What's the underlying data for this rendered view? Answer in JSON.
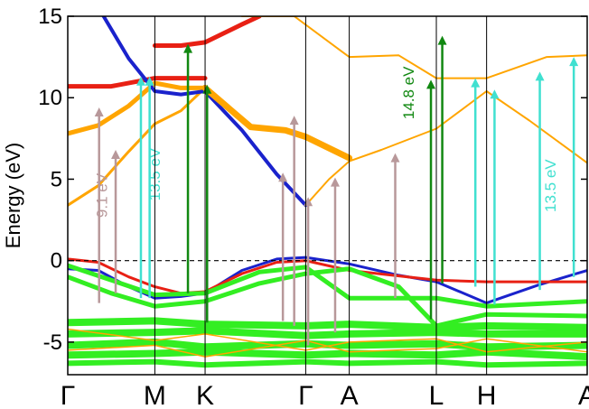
{
  "chart_data": {
    "type": "line",
    "ylabel": "Energy (eV)",
    "ylim": [
      -7,
      15
    ],
    "yticks": [
      -5,
      0,
      5,
      10,
      15
    ],
    "kpoints": [
      {
        "label": "Γ",
        "x": 0
      },
      {
        "label": "M",
        "x": 1.0
      },
      {
        "label": "K",
        "x": 1.577
      },
      {
        "label": "Γ",
        "x": 2.732
      },
      {
        "label": "A",
        "x": 3.232
      },
      {
        "label": "L",
        "x": 4.232
      },
      {
        "label": "H",
        "x": 4.809
      },
      {
        "label": "A",
        "x": 5.964
      }
    ],
    "fermi_level": 0,
    "colors": {
      "blue": "#1a22cc",
      "red": "#e82014",
      "green": "#33ee22",
      "orange": "#ffa500",
      "purple": "#5a2a8a",
      "rosy": "#b8989a",
      "cyan": "#40e0d0",
      "darkgreen": "#118811"
    },
    "series": [
      {
        "color": "orange",
        "width": 3,
        "points": [
          [
            0,
            3.4
          ],
          [
            0.35,
            4.6
          ],
          [
            0.7,
            6.7
          ],
          [
            1.0,
            8.4
          ],
          [
            1.3,
            9.2
          ],
          [
            1.577,
            10.6
          ]
        ]
      },
      {
        "color": "orange",
        "width": 5,
        "points": [
          [
            0,
            7.8
          ],
          [
            0.35,
            8.3
          ],
          [
            0.7,
            9.5
          ],
          [
            1.0,
            10.9
          ],
          [
            1.3,
            10.6
          ],
          [
            1.577,
            10.6
          ]
        ]
      },
      {
        "color": "red",
        "width": 5,
        "points": [
          [
            0,
            10.7
          ],
          [
            0.5,
            10.7
          ],
          [
            1.0,
            11.2
          ],
          [
            1.577,
            11.2
          ]
        ]
      },
      {
        "color": "red",
        "width": 5,
        "points": [
          [
            1.0,
            13.2
          ],
          [
            1.3,
            13.2
          ],
          [
            1.577,
            13.4
          ],
          [
            2.0,
            14.5
          ],
          [
            2.2,
            15
          ]
        ]
      },
      {
        "color": "blue",
        "width": 4,
        "points": [
          [
            0.4,
            15.1
          ],
          [
            0.7,
            12.4
          ],
          [
            1.0,
            10.4
          ],
          [
            1.3,
            10.2
          ],
          [
            1.577,
            10.4
          ],
          [
            2.0,
            8.0
          ],
          [
            2.4,
            5.3
          ],
          [
            2.732,
            3.4
          ]
        ]
      },
      {
        "color": "orange",
        "width": 7,
        "points": [
          [
            1.577,
            10.6
          ],
          [
            2.1,
            8.2
          ],
          [
            2.5,
            8.0
          ],
          [
            2.732,
            7.6
          ],
          [
            3.232,
            6.3
          ]
        ]
      },
      {
        "color": "orange",
        "width": 2,
        "points": [
          [
            2.732,
            3.4
          ],
          [
            3.0,
            5.0
          ],
          [
            3.232,
            6.1
          ],
          [
            3.6,
            6.8
          ],
          [
            4.232,
            8.1
          ],
          [
            4.809,
            10.4
          ],
          [
            5.3,
            8.6
          ],
          [
            5.964,
            6.0
          ]
        ]
      },
      {
        "color": "orange",
        "width": 2,
        "points": [
          [
            2.0,
            15
          ],
          [
            2.6,
            15
          ],
          [
            3.232,
            12.5
          ],
          [
            3.8,
            12.6
          ],
          [
            4.232,
            11.2
          ],
          [
            4.809,
            11.2
          ],
          [
            5.5,
            12.5
          ],
          [
            5.964,
            12.6
          ]
        ]
      },
      {
        "color": "blue",
        "width": 3,
        "points": [
          [
            0,
            -0.5
          ],
          [
            0.35,
            -0.6
          ],
          [
            0.7,
            -1.6
          ],
          [
            1.0,
            -2.3
          ],
          [
            1.3,
            -2.2
          ],
          [
            1.577,
            -2.0
          ],
          [
            2.0,
            -0.6
          ],
          [
            2.4,
            0.1
          ],
          [
            2.732,
            0.2
          ],
          [
            3.232,
            -0.2
          ],
          [
            3.8,
            -0.9
          ],
          [
            4.232,
            -1.3
          ],
          [
            4.809,
            -2.6
          ],
          [
            5.4,
            -1.5
          ],
          [
            5.964,
            -0.6
          ]
        ]
      },
      {
        "color": "red",
        "width": 3,
        "points": [
          [
            0,
            0.1
          ],
          [
            0.35,
            -0.1
          ],
          [
            0.7,
            -1.0
          ],
          [
            1.0,
            -1.6
          ],
          [
            1.3,
            -2.0
          ],
          [
            1.577,
            -1.9
          ],
          [
            2.0,
            -0.8
          ],
          [
            2.4,
            -0.1
          ],
          [
            2.732,
            0.0
          ],
          [
            3.232,
            -0.6
          ],
          [
            4.232,
            -1.2
          ],
          [
            4.809,
            -1.3
          ],
          [
            5.964,
            -1.3
          ]
        ]
      },
      {
        "color": "green",
        "width": 5,
        "points": [
          [
            0,
            -0.3
          ],
          [
            0.5,
            -1.2
          ],
          [
            1.0,
            -2.1
          ],
          [
            1.577,
            -2.0
          ],
          [
            2.2,
            -0.7
          ],
          [
            2.732,
            -0.4
          ],
          [
            3.232,
            -2.3
          ],
          [
            4.232,
            -2.3
          ],
          [
            4.809,
            -2.8
          ],
          [
            5.964,
            -2.5
          ]
        ]
      },
      {
        "color": "green",
        "width": 5,
        "points": [
          [
            0,
            -1.0
          ],
          [
            0.5,
            -2.0
          ],
          [
            1.0,
            -2.8
          ],
          [
            1.577,
            -2.5
          ],
          [
            2.2,
            -1.4
          ],
          [
            2.732,
            -0.8
          ],
          [
            3.232,
            -0.5
          ],
          [
            3.8,
            -1.6
          ],
          [
            4.232,
            -4.0
          ],
          [
            4.809,
            -3.3
          ],
          [
            5.964,
            -3.4
          ]
        ]
      },
      {
        "color": "green",
        "width": 8,
        "points": [
          [
            0,
            -3.8
          ],
          [
            1.0,
            -3.7
          ],
          [
            1.577,
            -3.9
          ],
          [
            2.732,
            -4.0
          ],
          [
            3.232,
            -3.9
          ],
          [
            4.232,
            -4.1
          ],
          [
            4.809,
            -4.0
          ],
          [
            5.964,
            -4.1
          ]
        ]
      },
      {
        "color": "green",
        "width": 8,
        "points": [
          [
            0,
            -4.5
          ],
          [
            1.0,
            -4.4
          ],
          [
            1.577,
            -4.3
          ],
          [
            2.732,
            -4.6
          ],
          [
            3.232,
            -4.5
          ],
          [
            4.232,
            -4.4
          ],
          [
            4.809,
            -4.5
          ],
          [
            5.964,
            -4.5
          ]
        ]
      },
      {
        "color": "green",
        "width": 8,
        "points": [
          [
            0,
            -5.2
          ],
          [
            1.0,
            -5.0
          ],
          [
            1.577,
            -5.3
          ],
          [
            2.732,
            -5.1
          ],
          [
            3.232,
            -5.2
          ],
          [
            4.232,
            -5.1
          ],
          [
            4.809,
            -5.3
          ],
          [
            5.964,
            -5.2
          ]
        ]
      },
      {
        "color": "green",
        "width": 8,
        "points": [
          [
            0,
            -5.8
          ],
          [
            1.0,
            -5.7
          ],
          [
            1.577,
            -5.6
          ],
          [
            2.732,
            -5.8
          ],
          [
            3.232,
            -5.7
          ],
          [
            4.232,
            -5.8
          ],
          [
            4.809,
            -5.6
          ],
          [
            5.964,
            -5.9
          ]
        ]
      },
      {
        "color": "green",
        "width": 6,
        "points": [
          [
            0,
            -6.3
          ],
          [
            1.0,
            -6.2
          ],
          [
            1.577,
            -6.4
          ],
          [
            2.732,
            -6.2
          ],
          [
            3.232,
            -6.3
          ],
          [
            4.232,
            -6.2
          ],
          [
            4.809,
            -6.4
          ],
          [
            5.964,
            -6.3
          ]
        ]
      },
      {
        "color": "orange",
        "width": 1.5,
        "points": [
          [
            0,
            -4.2
          ],
          [
            1.0,
            -4.9
          ],
          [
            1.577,
            -4.5
          ],
          [
            2.732,
            -5.5
          ],
          [
            3.232,
            -5.0
          ],
          [
            4.232,
            -4.8
          ],
          [
            4.809,
            -5.6
          ],
          [
            5.964,
            -5.0
          ]
        ]
      },
      {
        "color": "orange",
        "width": 1.5,
        "points": [
          [
            0,
            -5.5
          ],
          [
            1.0,
            -5.2
          ],
          [
            1.577,
            -5.9
          ],
          [
            2.732,
            -4.9
          ],
          [
            3.232,
            -5.6
          ],
          [
            4.232,
            -5.4
          ],
          [
            4.809,
            -4.8
          ],
          [
            5.964,
            -5.6
          ]
        ]
      }
    ],
    "transitions": [
      {
        "x": 0.36,
        "y0": -2.6,
        "y1": 9.4,
        "color": "rosy"
      },
      {
        "x": 0.55,
        "y0": -2.0,
        "y1": 6.8,
        "color": "rosy"
      },
      {
        "x": 0.84,
        "y0": -2.3,
        "y1": 11.3,
        "color": "cyan"
      },
      {
        "x": 0.94,
        "y0": -2.3,
        "y1": 11.3,
        "color": "cyan"
      },
      {
        "x": 1.38,
        "y0": -2.0,
        "y1": 13.3,
        "color": "darkgreen"
      },
      {
        "x": 1.6,
        "y0": -3.8,
        "y1": 10.8,
        "color": "darkgreen"
      },
      {
        "x": 2.47,
        "y0": -3.7,
        "y1": 5.4,
        "color": "rosy"
      },
      {
        "x": 2.6,
        "y0": -4.0,
        "y1": 8.9,
        "color": "rosy"
      },
      {
        "x": 2.76,
        "y0": -5.2,
        "y1": 3.9,
        "color": "rosy"
      },
      {
        "x": 3.07,
        "y0": -4.4,
        "y1": 5.1,
        "color": "rosy"
      },
      {
        "x": 3.76,
        "y0": -2.3,
        "y1": 6.6,
        "color": "rosy"
      },
      {
        "x": 4.17,
        "y0": -3.6,
        "y1": 11.1,
        "color": "darkgreen"
      },
      {
        "x": 4.3,
        "y0": -1.4,
        "y1": 13.8,
        "color": "darkgreen"
      },
      {
        "x": 4.68,
        "y0": -1.6,
        "y1": 11.2,
        "color": "cyan"
      },
      {
        "x": 4.9,
        "y0": -2.7,
        "y1": 10.5,
        "color": "cyan"
      },
      {
        "x": 5.42,
        "y0": -1.8,
        "y1": 11.6,
        "color": "cyan"
      },
      {
        "x": 5.81,
        "y0": -1.0,
        "y1": 12.5,
        "color": "cyan"
      }
    ],
    "annotations": [
      {
        "text": "9.1 eV",
        "x": 0.45,
        "y": 4.0,
        "color": "rosy"
      },
      {
        "text": "13.5 eV",
        "x": 1.06,
        "y": 5.3,
        "color": "cyan"
      },
      {
        "text": "14.8 eV",
        "x": 3.97,
        "y": 10.3,
        "color": "darkgreen"
      },
      {
        "text": "13.5 eV",
        "x": 5.6,
        "y": 4.6,
        "color": "cyan"
      }
    ]
  }
}
